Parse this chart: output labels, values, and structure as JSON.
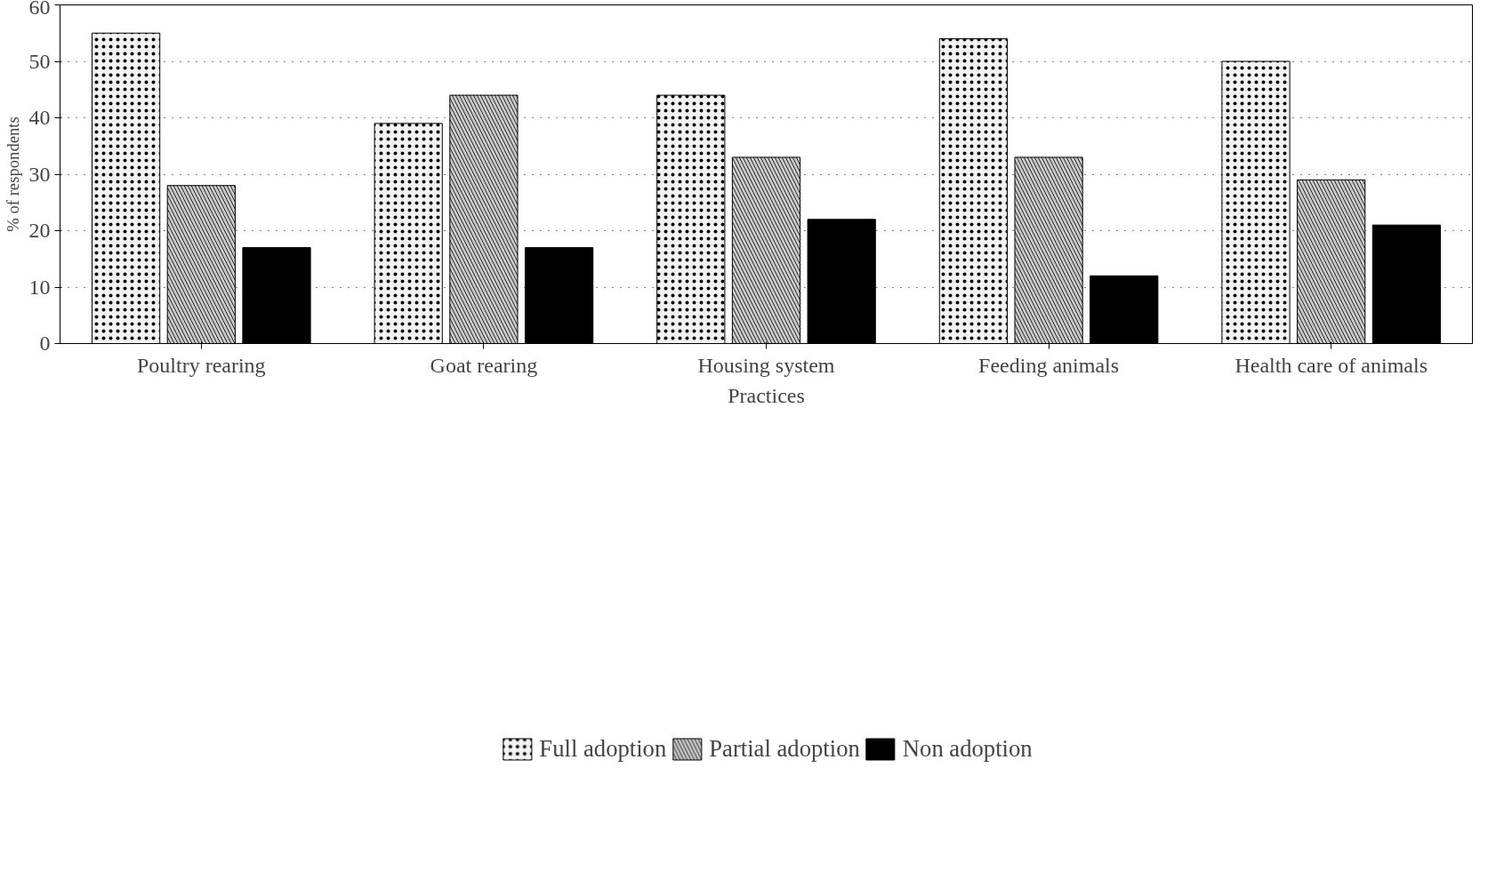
{
  "chart_data": {
    "type": "bar",
    "xlabel": "Practices",
    "ylabel": "% of respondents",
    "categories": [
      "Poultry rearing",
      "Goat rearing",
      "Housing system",
      "Feeding animals",
      "Health care of animals"
    ],
    "series": [
      {
        "name": "Full adoption",
        "color": "#f2f2f2",
        "values": [
          55,
          39,
          44,
          54,
          50
        ]
      },
      {
        "name": "Partial adoption",
        "color": "#c8c8c8",
        "values": [
          28,
          44,
          33,
          33,
          29
        ]
      },
      {
        "name": "Non adoption",
        "color": "#000000",
        "values": [
          17,
          17,
          22,
          12,
          21
        ]
      }
    ],
    "ylim": [
      0,
      60
    ],
    "yticks": [
      0,
      10,
      20,
      30,
      40,
      50,
      60
    ],
    "grid": "y",
    "legend": "bottom"
  }
}
